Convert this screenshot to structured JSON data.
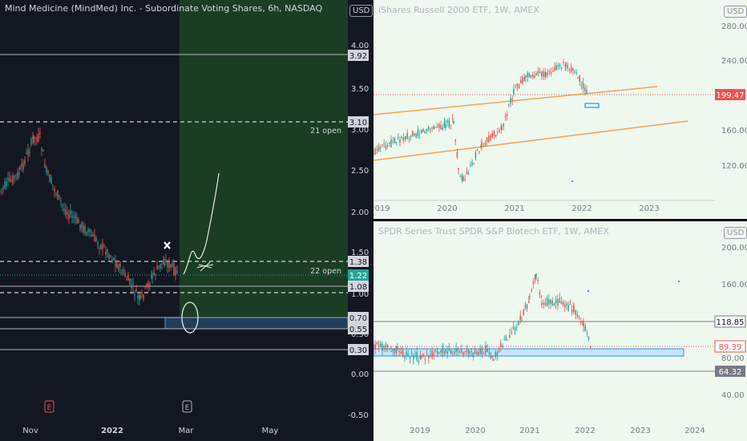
{
  "left": {
    "title": "Mind Medicine (MindMed) Inc. - Subordinate Voting Shares, 6h, NASDAQ",
    "currency": "USD",
    "y_ticks": [
      "4.00",
      "3.50",
      "3.00",
      "2.50",
      "2.00",
      "1.50",
      "1.00",
      "0.50",
      "0.00",
      "-0.50"
    ],
    "x_ticks": [
      "Nov",
      "2022",
      "Mar",
      "May"
    ],
    "price_tags": [
      "3.92",
      "3.10",
      "1.38",
      "1.22",
      "1.08",
      "0.70",
      "0.55",
      "0.30"
    ],
    "annotations": {
      "open21": "21 open",
      "open22": "22 open",
      "earnings": "E"
    },
    "colors": {
      "up": "#26a69a",
      "down": "#ef5350",
      "bg": "#131722",
      "future_zone": "#1a3a22"
    }
  },
  "right_top": {
    "title": "iShares Russell 2000 ETF, 1W, AMEX",
    "currency": "USD",
    "y_ticks": [
      "280.00",
      "240.00",
      "200.00",
      "160.00",
      "120.00"
    ],
    "x_ticks": [
      "2019",
      "2020",
      "2021",
      "2022",
      "2023"
    ],
    "price_tag": "199.47",
    "colors": {
      "channel": "#f7a14f",
      "tag": "#ef5350"
    }
  },
  "right_bottom": {
    "title": "SPDR Series Trust SPDR S&P Biotech ETF, 1W, AMEX",
    "currency": "USD",
    "y_ticks": [
      "200.00",
      "160.00",
      "120.00",
      "80.00",
      "40.00"
    ],
    "x_ticks": [
      "2019",
      "2020",
      "2021",
      "2022",
      "2023",
      "2024"
    ],
    "price_tags": [
      "118.85",
      "89.39",
      "64.32"
    ]
  }
}
